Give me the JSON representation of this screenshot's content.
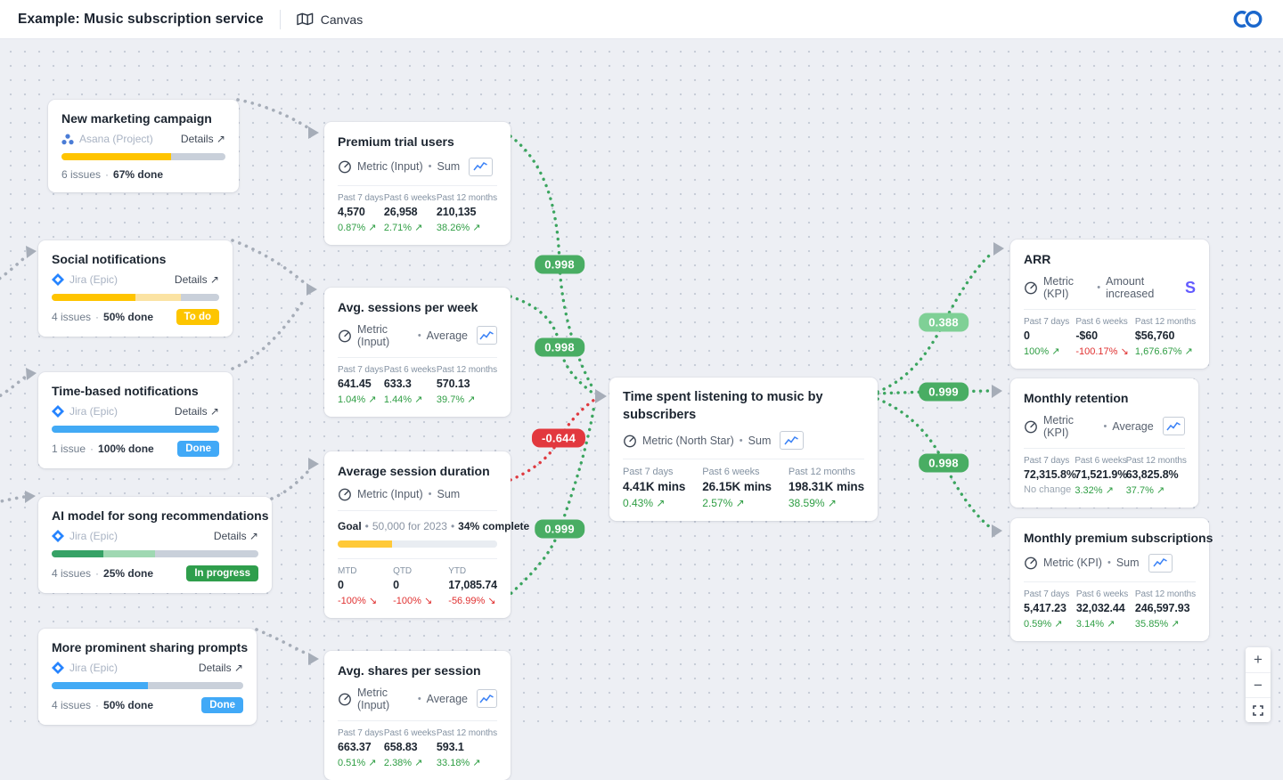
{
  "header": {
    "title": "Example: Music subscription service",
    "tab": "Canvas"
  },
  "ui": {
    "dot_separator": "·",
    "type_separator": "•",
    "stripe_glyph": "S"
  },
  "colors": {
    "positive_green": "#2f9e44",
    "negative_red": "#e03131",
    "neutral_gray": "#9aa5b1",
    "badge_green": "#49ad63",
    "badge_light_green": "#7fd096",
    "badge_red": "#e2383e",
    "status_todo": "#fdc500",
    "status_done": "#41a9f7",
    "status_inprogress": "#2f9e4c",
    "stripe_brand": "#635bff",
    "jira_blue": "#2684ff",
    "logo_blue": "#1b67cc"
  },
  "project_cards": [
    {
      "title": "New marketing campaign",
      "source": "Asana (Project)",
      "details": "Details ↗",
      "issues": "6 issues",
      "done": "67% done",
      "badge": null,
      "segments": [
        {
          "color": "#ffc400",
          "pct": 67
        },
        {
          "color": "#c9d0da",
          "pct": 33
        }
      ]
    },
    {
      "title": "Social notifications",
      "source": "Jira (Epic)",
      "details": "Details ↗",
      "issues": "4 issues",
      "done": "50% done",
      "badge": {
        "label": "To do",
        "tone": "todo"
      },
      "segments": [
        {
          "color": "#ffc400",
          "pct": 50
        },
        {
          "color": "#fbe3a3",
          "pct": 27
        },
        {
          "color": "#c9d0da",
          "pct": 23
        }
      ]
    },
    {
      "title": "Time-based notifications",
      "source": "Jira (Epic)",
      "details": "Details ↗",
      "issues": "1 issue",
      "done": "100% done",
      "badge": {
        "label": "Done",
        "tone": "done"
      },
      "segments": [
        {
          "color": "#42aaf5",
          "pct": 100
        }
      ]
    },
    {
      "title": "AI model for song recommendations",
      "source": "Jira (Epic)",
      "details": "Details ↗",
      "issues": "4 issues",
      "done": "25% done",
      "badge": {
        "label": "In progress",
        "tone": "inprogress"
      },
      "segments": [
        {
          "color": "#36a266",
          "pct": 25
        },
        {
          "color": "#9fd8b2",
          "pct": 25
        },
        {
          "color": "#c9d0da",
          "pct": 50
        }
      ]
    },
    {
      "title": "More prominent sharing prompts",
      "source": "Jira (Epic)",
      "details": "Details ↗",
      "issues": "4 issues",
      "done": "50% done",
      "badge": {
        "label": "Done",
        "tone": "done"
      },
      "segments": [
        {
          "color": "#42aaf5",
          "pct": 50
        },
        {
          "color": "#c9d0da",
          "pct": 50
        }
      ]
    }
  ],
  "metric_cards": [
    {
      "title": "Premium trial users",
      "type": "Metric (Input)",
      "agg": "Sum",
      "stats": [
        {
          "label": "Past 7 days",
          "value": "4,570",
          "delta": "0.87% ↗",
          "dir": "up"
        },
        {
          "label": "Past 6 weeks",
          "value": "26,958",
          "delta": "2.71% ↗",
          "dir": "up"
        },
        {
          "label": "Past 12 months",
          "value": "210,135",
          "delta": "38.26% ↗",
          "dir": "up"
        }
      ]
    },
    {
      "title": "Avg. sessions per week",
      "type": "Metric (Input)",
      "agg": "Average",
      "stats": [
        {
          "label": "Past 7 days",
          "value": "641.45",
          "delta": "1.04% ↗",
          "dir": "up"
        },
        {
          "label": "Past 6 weeks",
          "value": "633.3",
          "delta": "1.44% ↗",
          "dir": "up"
        },
        {
          "label": "Past 12 months",
          "value": "570.13",
          "delta": "39.7% ↗",
          "dir": "up"
        }
      ]
    },
    {
      "title": "Average session duration",
      "type": "Metric (Input)",
      "agg": "Sum",
      "goal": {
        "label": "Goal",
        "text": "50,000 for 2023",
        "complete": "34% complete",
        "segments": [
          {
            "color": "#ffc938",
            "pct": 34
          },
          {
            "color": "#e9edf2",
            "pct": 66
          }
        ]
      },
      "stats": [
        {
          "label": "MTD",
          "value": "0",
          "delta": "-100% ↘",
          "dir": "down"
        },
        {
          "label": "QTD",
          "value": "0",
          "delta": "-100% ↘",
          "dir": "down"
        },
        {
          "label": "YTD",
          "value": "17,085.74",
          "delta": "-56.99% ↘",
          "dir": "down"
        }
      ]
    },
    {
      "title": "Avg. shares per session",
      "type": "Metric (Input)",
      "agg": "Average",
      "stats": [
        {
          "label": "Past 7 days",
          "value": "663.37",
          "delta": "0.51% ↗",
          "dir": "up"
        },
        {
          "label": "Past 6 weeks",
          "value": "658.83",
          "delta": "2.38% ↗",
          "dir": "up"
        },
        {
          "label": "Past 12 months",
          "value": "593.1",
          "delta": "33.18% ↗",
          "dir": "up"
        }
      ]
    },
    {
      "title": "Time spent listening to music by subscribers",
      "type": "Metric (North Star)",
      "agg": "Sum",
      "stats": [
        {
          "label": "Past 7 days",
          "value": "4.41K mins",
          "delta": "0.43% ↗",
          "dir": "up"
        },
        {
          "label": "Past 6 weeks",
          "value": "26.15K mins",
          "delta": "2.57% ↗",
          "dir": "up"
        },
        {
          "label": "Past 12 months",
          "value": "198.31K mins",
          "delta": "38.59% ↗",
          "dir": "up"
        }
      ]
    },
    {
      "title": "ARR",
      "type": "Metric (KPI)",
      "agg": "Amount increased",
      "stats": [
        {
          "label": "Past 7 days",
          "value": "0",
          "delta": "100% ↗",
          "dir": "up"
        },
        {
          "label": "Past 6 weeks",
          "value": "-$60",
          "delta": "-100.17% ↘",
          "dir": "down"
        },
        {
          "label": "Past 12 months",
          "value": "$56,760",
          "delta": "1,676.67% ↗",
          "dir": "up"
        }
      ]
    },
    {
      "title": "Monthly retention",
      "type": "Metric (KPI)",
      "agg": "Average",
      "stats": [
        {
          "label": "Past 7 days",
          "value": "72,315.8%",
          "delta": "No change",
          "dir": "flat"
        },
        {
          "label": "Past 6 weeks",
          "value": "71,521.9%",
          "delta": "3.32% ↗",
          "dir": "up"
        },
        {
          "label": "Past 12 months",
          "value": "63,825.8%",
          "delta": "37.7% ↗",
          "dir": "up"
        }
      ]
    },
    {
      "title": "Monthly premium subscriptions",
      "type": "Metric (KPI)",
      "agg": "Sum",
      "stats": [
        {
          "label": "Past 7 days",
          "value": "5,417.23",
          "delta": "0.59% ↗",
          "dir": "up"
        },
        {
          "label": "Past 6 weeks",
          "value": "32,032.44",
          "delta": "3.14% ↗",
          "dir": "up"
        },
        {
          "label": "Past 12 months",
          "value": "246,597.93",
          "delta": "35.85% ↗",
          "dir": "up"
        }
      ]
    }
  ],
  "edges": {
    "badges": [
      {
        "value": "0.998",
        "tone": "green"
      },
      {
        "value": "0.998",
        "tone": "green"
      },
      {
        "value": "-0.644",
        "tone": "red"
      },
      {
        "value": "0.999",
        "tone": "green"
      },
      {
        "value": "0.388",
        "tone": "light"
      },
      {
        "value": "0.999",
        "tone": "green"
      },
      {
        "value": "0.998",
        "tone": "green"
      }
    ]
  },
  "controls": {
    "zoom_in": "+",
    "zoom_out": "−"
  }
}
